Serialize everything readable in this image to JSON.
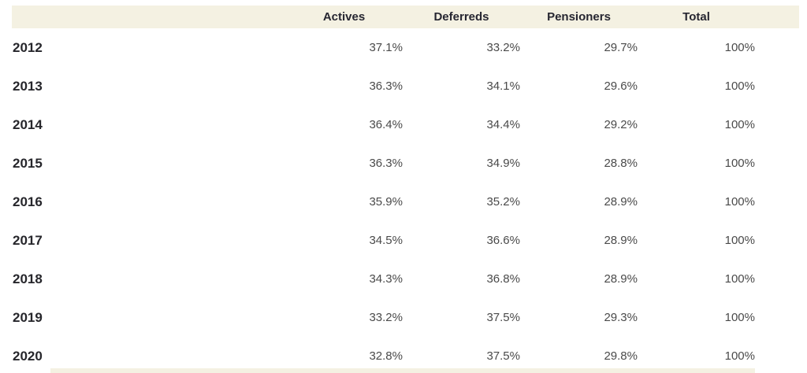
{
  "colors": {
    "header_bg": "#f4f1e2",
    "header_text": "#262631",
    "year_text": "#26262b",
    "value_text": "#4a4a4a",
    "page_bg": "#ffffff"
  },
  "chart_data": {
    "type": "table",
    "title": "",
    "columns": [
      "Actives",
      "Deferreds",
      "Pensioners",
      "Total"
    ],
    "row_labels": [
      "2012",
      "2013",
      "2014",
      "2015",
      "2016",
      "2017",
      "2018",
      "2019",
      "2020"
    ],
    "rows": [
      {
        "year": "2012",
        "values": [
          "37.1%",
          "33.2%",
          "29.7%",
          "100%"
        ]
      },
      {
        "year": "2013",
        "values": [
          "36.3%",
          "34.1%",
          "29.6%",
          "100%"
        ]
      },
      {
        "year": "2014",
        "values": [
          "36.4%",
          "34.4%",
          "29.2%",
          "100%"
        ]
      },
      {
        "year": "2015",
        "values": [
          "36.3%",
          "34.9%",
          "28.8%",
          "100%"
        ]
      },
      {
        "year": "2016",
        "values": [
          "35.9%",
          "35.2%",
          "28.9%",
          "100%"
        ]
      },
      {
        "year": "2017",
        "values": [
          "34.5%",
          "36.6%",
          "28.9%",
          "100%"
        ]
      },
      {
        "year": "2018",
        "values": [
          "34.3%",
          "36.8%",
          "28.9%",
          "100%"
        ]
      },
      {
        "year": "2019",
        "values": [
          "33.2%",
          "37.5%",
          "29.3%",
          "100%"
        ]
      },
      {
        "year": "2020",
        "values": [
          "32.8%",
          "37.5%",
          "29.8%",
          "100%"
        ]
      }
    ],
    "numeric_rows": [
      [
        37.1,
        33.2,
        29.7,
        100
      ],
      [
        36.3,
        34.1,
        29.6,
        100
      ],
      [
        36.4,
        34.4,
        29.2,
        100
      ],
      [
        36.3,
        34.9,
        28.8,
        100
      ],
      [
        35.9,
        35.2,
        28.9,
        100
      ],
      [
        34.5,
        36.6,
        28.9,
        100
      ],
      [
        34.3,
        36.8,
        28.9,
        100
      ],
      [
        33.2,
        37.5,
        29.3,
        100
      ],
      [
        32.8,
        37.5,
        29.8,
        100
      ]
    ],
    "value_unit": "%"
  }
}
